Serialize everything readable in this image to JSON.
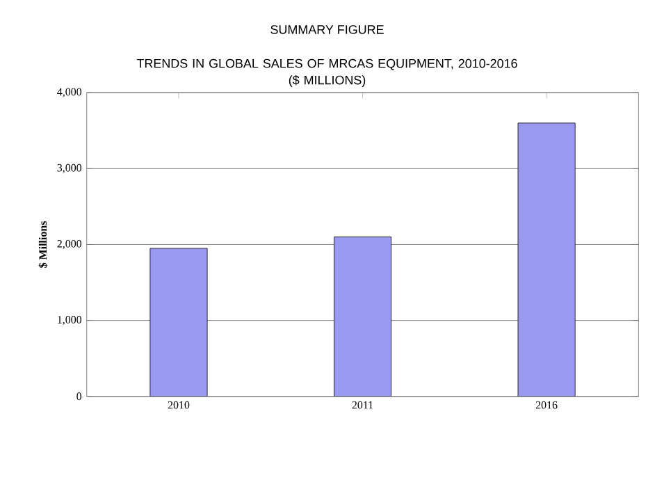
{
  "chart_data": {
    "type": "bar",
    "title": "SUMMARY FIGURE",
    "subtitle": "TRENDS IN GLOBAL SALES OF MRCAS EQUIPMENT, 2010-2016\n($ MILLIONS)",
    "ylabel": "$ Millions",
    "categories": [
      "2010",
      "2011",
      "2016"
    ],
    "values": [
      1950,
      2100,
      3600
    ],
    "color": "#9999f0",
    "ylim": [
      0,
      4000
    ],
    "yticks": [
      {
        "value": 0,
        "label": "0"
      },
      {
        "value": 1000,
        "label": "1,000"
      },
      {
        "value": 2000,
        "label": "2,000"
      },
      {
        "value": 3000,
        "label": "3,000"
      },
      {
        "value": 4000,
        "label": "4,000"
      }
    ],
    "grid": "y"
  }
}
